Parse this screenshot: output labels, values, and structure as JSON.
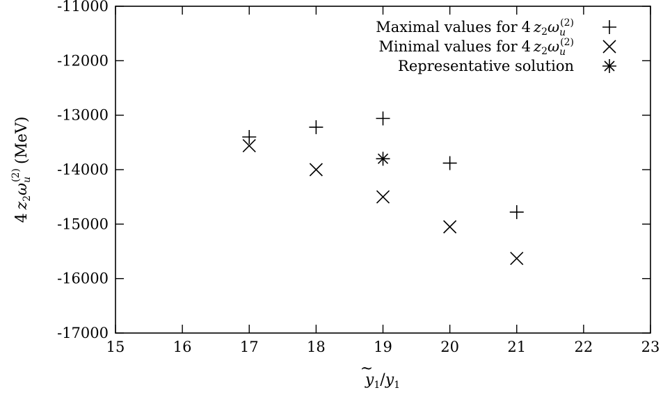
{
  "chart_data": {
    "type": "scatter",
    "title": "",
    "xlabel": {
      "main": "y",
      "tilde_sub": "1",
      "slash": "/",
      "denom": "y",
      "denom_sub": "1"
    },
    "ylabel": {
      "prefix": "4",
      "z": "z",
      "z_sub": "2",
      "omega": "ω",
      "omega_sub": "u",
      "omega_sup": "(2)",
      "unit": "(MeV)"
    },
    "xlim": [
      15,
      23
    ],
    "ylim": [
      -17000,
      -11000
    ],
    "xticks": [
      "15",
      "16",
      "17",
      "18",
      "19",
      "20",
      "21",
      "22",
      "23"
    ],
    "xtick_values": [
      15,
      16,
      17,
      18,
      19,
      20,
      21,
      22,
      23
    ],
    "yticks": [
      "-11000",
      "-12000",
      "-13000",
      "-14000",
      "-15000",
      "-16000",
      "-17000"
    ],
    "ytick_values": [
      -11000,
      -12000,
      -13000,
      -14000,
      -15000,
      -16000,
      -17000
    ],
    "legend_position": "top-right",
    "grid": false,
    "series": [
      {
        "legend": {
          "text": "Maximal values for",
          "prefix": "4",
          "z": "z",
          "z_sub": "2",
          "omega": "ω",
          "omega_sub": "u",
          "omega_sup": "(2)"
        },
        "marker": "plus",
        "points": [
          {
            "x": 17,
            "y": -13400
          },
          {
            "x": 18,
            "y": -13220
          },
          {
            "x": 19,
            "y": -13060
          },
          {
            "x": 20,
            "y": -13880
          },
          {
            "x": 21,
            "y": -14780
          }
        ]
      },
      {
        "legend": {
          "text": "Minimal values for",
          "prefix": "4",
          "z": "z",
          "z_sub": "2",
          "omega": "ω",
          "omega_sub": "u",
          "omega_sup": "(2)"
        },
        "marker": "cross",
        "points": [
          {
            "x": 17,
            "y": -13560
          },
          {
            "x": 18,
            "y": -14000
          },
          {
            "x": 19,
            "y": -14500
          },
          {
            "x": 20,
            "y": -15050
          },
          {
            "x": 21,
            "y": -15630
          }
        ]
      },
      {
        "legend": {
          "text": "Representative solution"
        },
        "marker": "star",
        "points": [
          {
            "x": 19,
            "y": -13800
          }
        ]
      }
    ]
  }
}
